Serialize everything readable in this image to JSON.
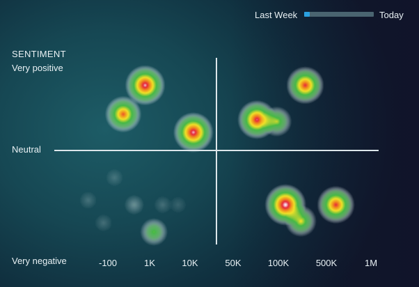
{
  "timeline": {
    "start_label": "Last Week",
    "end_label": "Today",
    "progress": 0.08,
    "fill_color": "#2aa0e0",
    "track_color": "#4a6470"
  },
  "y_axis": {
    "title": "SENTIMENT",
    "top_label": "Very positive",
    "middle_label": "Neutral",
    "bottom_label": "Very negative"
  },
  "x_axis": {
    "ticks": [
      "-100",
      "1K",
      "10K",
      "50K",
      "100K",
      "500K",
      "1M"
    ]
  },
  "chart_data": {
    "type": "heatmap",
    "title": "",
    "ylabel": "SENTIMENT",
    "xlabel": "",
    "x_ticks": [
      "-100",
      "1K",
      "10K",
      "50K",
      "100K",
      "500K",
      "1M"
    ],
    "y_levels": [
      "Very positive",
      "Neutral",
      "Very negative"
    ],
    "clusters": [
      {
        "x": 0.85,
        "y": 0.72,
        "intensity": 0.95
      },
      {
        "x": 0.35,
        "y": 0.4,
        "intensity": 0.8
      },
      {
        "x": 1.95,
        "y": 0.2,
        "intensity": 0.95
      },
      {
        "x": 3.4,
        "y": 0.34,
        "intensity": 0.9
      },
      {
        "x": 3.85,
        "y": 0.32,
        "intensity": 0.55
      },
      {
        "x": 4.5,
        "y": 0.72,
        "intensity": 0.85
      },
      {
        "x": 4.05,
        "y": -0.6,
        "intensity": 1.0
      },
      {
        "x": 4.4,
        "y": -0.78,
        "intensity": 0.6
      },
      {
        "x": 5.2,
        "y": -0.6,
        "intensity": 0.85
      },
      {
        "x": 1.05,
        "y": -0.9,
        "intensity": 0.45
      },
      {
        "x": 0.6,
        "y": -0.6,
        "intensity": 0.15
      },
      {
        "x": 0.15,
        "y": -0.3,
        "intensity": 0.08
      },
      {
        "x": -0.45,
        "y": -0.55,
        "intensity": 0.08
      },
      {
        "x": -0.1,
        "y": -0.8,
        "intensity": 0.08
      },
      {
        "x": 1.25,
        "y": -0.6,
        "intensity": 0.08
      },
      {
        "x": 1.6,
        "y": -0.6,
        "intensity": 0.06
      }
    ]
  }
}
